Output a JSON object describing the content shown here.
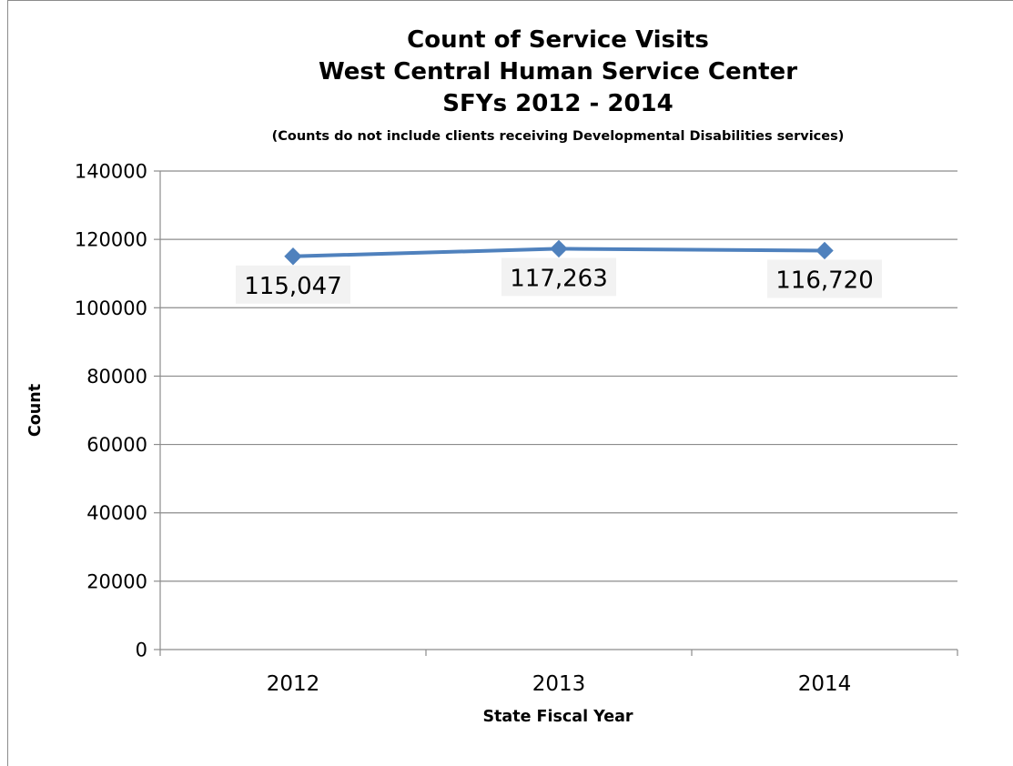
{
  "chart_data": {
    "type": "line",
    "title_lines": [
      "Count of Service Visits",
      "West Central Human Service Center",
      "SFYs 2012 - 2014"
    ],
    "subtitle": "(Counts do not include clients receiving Developmental Disabilities services)",
    "xlabel": "State Fiscal Year",
    "ylabel": "Count",
    "categories": [
      "2012",
      "2013",
      "2014"
    ],
    "series": [
      {
        "values": [
          115047,
          117263,
          116720
        ],
        "data_labels": [
          "115,047",
          "117,263",
          "116,720"
        ],
        "color": "#4f81bd",
        "marker": "diamond"
      }
    ],
    "ylim": [
      0,
      140000
    ],
    "yticks": [
      "0",
      "20000",
      "40000",
      "60000",
      "80000",
      "100000",
      "120000",
      "140000"
    ],
    "grid": true,
    "legend": "none"
  }
}
